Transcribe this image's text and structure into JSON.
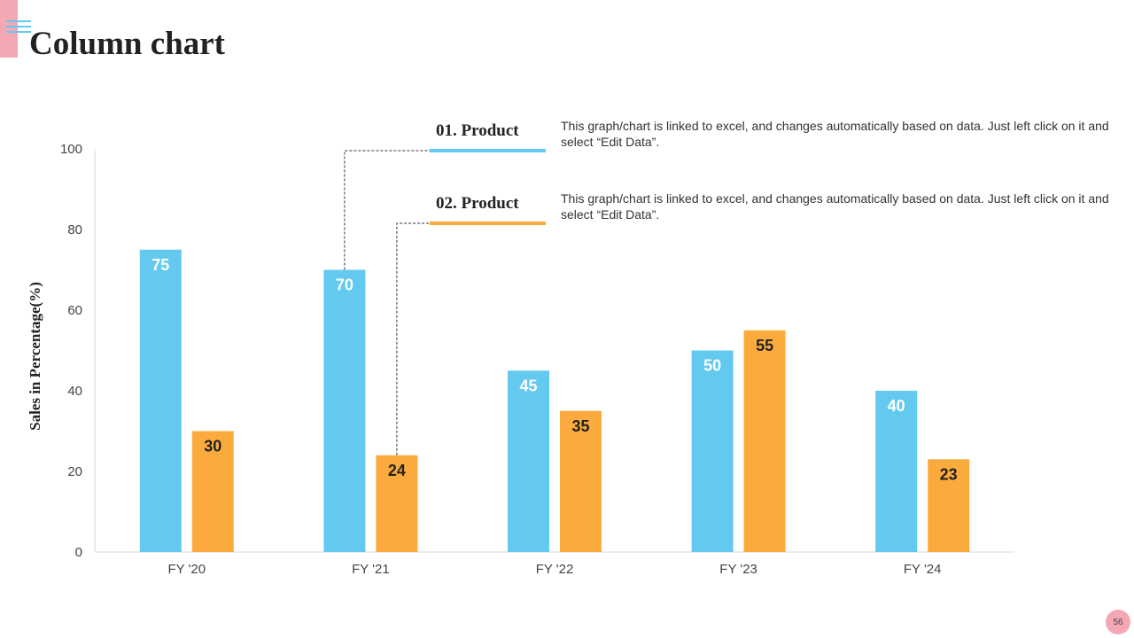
{
  "page": {
    "title": "Column chart",
    "page_number": "56"
  },
  "colors": {
    "series1": "#63c9ef",
    "series2": "#fbab3e",
    "accent_pink": "#f4a8b4",
    "menu_icon": "#63c9ef"
  },
  "legend": [
    {
      "title": "01. Product",
      "description": "This graph/chart is linked to excel, and changes automatically based on data. Just left click on it and select “Edit Data”.",
      "color": "#63c9ef"
    },
    {
      "title": "02. Product",
      "description": "This graph/chart is linked to excel, and changes automatically based on data. Just left click on it and select “Edit Data”.",
      "color": "#fbab3e"
    }
  ],
  "chart_data": {
    "type": "bar",
    "title": "",
    "xlabel": "",
    "ylabel": "Sales in Percentage(%)",
    "categories": [
      "FY '20",
      "FY '21",
      "FY '22",
      "FY '23",
      "FY '24"
    ],
    "series": [
      {
        "values": [
          75,
          70,
          45,
          50,
          40
        ],
        "color": "#63c9ef",
        "label_color": "#ffffff"
      },
      {
        "values": [
          30,
          24,
          35,
          55,
          23
        ],
        "color": "#fbab3e",
        "label_color": "#222222"
      }
    ],
    "ylim": [
      0,
      100
    ],
    "yticks": [
      0,
      20,
      40,
      60,
      80,
      100
    ],
    "grid": false,
    "legend_position": "top-right"
  }
}
